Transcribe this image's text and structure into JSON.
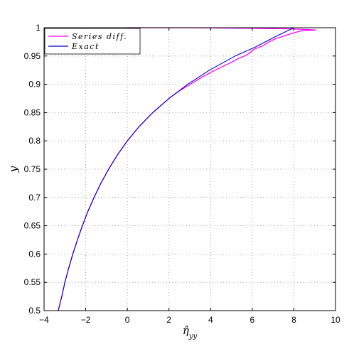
{
  "chart_data": {
    "type": "line",
    "title": "",
    "xlabel": "η̂",
    "xlabel_sub": "yy",
    "ylabel": "y",
    "xlim": [
      -4,
      10
    ],
    "ylim": [
      0.5,
      1
    ],
    "xticks": [
      "−4",
      "−2",
      "0",
      "2",
      "4",
      "6",
      "8",
      "10"
    ],
    "xtick_values": [
      -4,
      -2,
      0,
      2,
      4,
      6,
      8,
      10
    ],
    "yticks": [
      "0.5",
      "0.55",
      "0.6",
      "0.65",
      "0.7",
      "0.75",
      "0.8",
      "0.85",
      "0.9",
      "0.95",
      "1"
    ],
    "ytick_values": [
      0.5,
      0.55,
      0.6,
      0.65,
      0.7,
      0.75,
      0.8,
      0.85,
      0.9,
      0.95,
      1.0
    ],
    "grid": true,
    "legend_position": "top-left",
    "series": [
      {
        "name": "Series diff.",
        "color": "#ff00ff",
        "style": "oscillating",
        "x": [
          -3.32,
          -3.15,
          -3.0,
          -2.82,
          -2.62,
          -2.4,
          -2.16,
          -1.9,
          -1.6,
          -1.27,
          -0.9,
          -0.48,
          0.0,
          0.56,
          1.22,
          2.0,
          2.48,
          3.02,
          3.6,
          4.22,
          4.95,
          5.3,
          5.75,
          6.1,
          6.5,
          6.8,
          7.1,
          7.5,
          7.9,
          8.4,
          9.05,
          8.5,
          7.8,
          6.0,
          3.0,
          0.0
        ],
        "y": [
          0.5,
          0.525,
          0.55,
          0.575,
          0.6,
          0.625,
          0.65,
          0.675,
          0.7,
          0.725,
          0.75,
          0.775,
          0.8,
          0.825,
          0.85,
          0.875,
          0.888,
          0.9,
          0.913,
          0.925,
          0.938,
          0.945,
          0.952,
          0.962,
          0.968,
          0.975,
          0.98,
          0.985,
          0.99,
          0.995,
          0.996,
          0.997,
          0.998,
          0.999,
          1.0,
          1.0
        ]
      },
      {
        "name": "Exact",
        "color": "#0000cc",
        "style": "smooth",
        "x": [
          -3.32,
          -3.15,
          -3.0,
          -2.82,
          -2.62,
          -2.4,
          -2.16,
          -1.9,
          -1.6,
          -1.27,
          -0.9,
          -0.48,
          0.0,
          0.56,
          1.22,
          2.0,
          2.9,
          3.95,
          5.18,
          6.1,
          7.0,
          8.0
        ],
        "y": [
          0.5,
          0.525,
          0.55,
          0.575,
          0.6,
          0.625,
          0.65,
          0.675,
          0.7,
          0.725,
          0.75,
          0.775,
          0.8,
          0.825,
          0.85,
          0.875,
          0.9,
          0.925,
          0.95,
          0.965,
          0.982,
          1.0
        ]
      }
    ]
  }
}
